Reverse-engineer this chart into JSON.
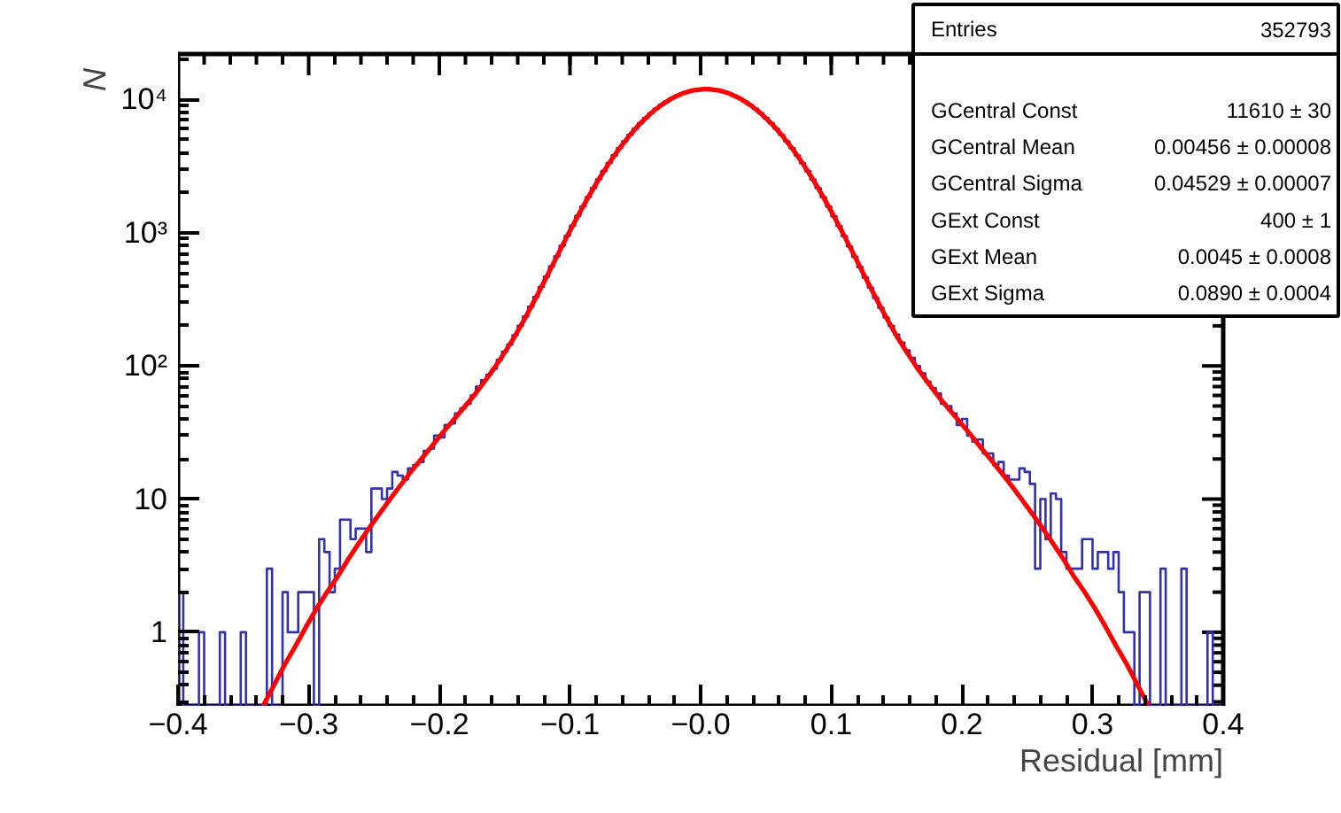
{
  "chart_data": {
    "type": "histogram",
    "xlabel": "Residual [mm]",
    "ylabel": "N",
    "log": "y",
    "xlim": [
      -0.4,
      0.4
    ],
    "ylim": [
      0.28,
      22000
    ],
    "xticks": [
      {
        "value": -0.4,
        "label": "−0.4"
      },
      {
        "value": -0.3,
        "label": "−0.3"
      },
      {
        "value": -0.2,
        "label": "−0.2"
      },
      {
        "value": -0.1,
        "label": "−0.1"
      },
      {
        "value": 0,
        "label": "−0.0"
      },
      {
        "value": 0.1,
        "label": "0.1"
      },
      {
        "value": 0.2,
        "label": "0.2"
      },
      {
        "value": 0.3,
        "label": "0.3"
      },
      {
        "value": 0.4,
        "label": "0.4"
      }
    ],
    "yticks": [
      1,
      10,
      {
        "value": 100,
        "label": "10²"
      },
      {
        "value": 1000,
        "label": "10³"
      },
      {
        "value": 10000,
        "label": "10⁴"
      }
    ],
    "annotations": [
      "Entries",
      "352793",
      "GCentral Const",
      "11610 ± 30",
      "GCentral Mean",
      "0.00456 ± 0.00008",
      "GCentral Sigma",
      "0.04529 ± 0.00007",
      "GExt Const",
      "400 ± 1",
      "GExt Mean",
      "0.0045 ± 0.0008",
      "GExt Sigma",
      "0.0890 ± 0.0004"
    ],
    "series": [
      {
        "color": "#3030b0",
        "bins": [
          -0.4,
          -0.396,
          -0.392,
          -0.388,
          -0.384,
          -0.38,
          -0.376,
          -0.372,
          -0.368,
          -0.364,
          -0.36,
          -0.356,
          -0.352,
          -0.348,
          -0.344,
          -0.34,
          -0.336,
          -0.332,
          -0.328,
          -0.324,
          -0.32,
          -0.316,
          -0.312,
          -0.308,
          -0.304,
          -0.3,
          -0.296,
          -0.292,
          -0.288,
          -0.284,
          -0.28,
          -0.276,
          -0.272,
          -0.268,
          -0.264,
          -0.26,
          -0.256,
          -0.252,
          -0.248,
          -0.244,
          -0.24,
          -0.236,
          -0.232,
          -0.228,
          -0.224,
          -0.22,
          -0.216,
          -0.212,
          -0.208,
          -0.204,
          -0.2,
          -0.196,
          -0.192,
          -0.188,
          -0.184,
          -0.18,
          -0.176,
          -0.172,
          -0.168,
          -0.164,
          -0.16,
          -0.156,
          -0.152,
          -0.148,
          -0.144,
          -0.14,
          -0.136,
          -0.132,
          -0.128,
          -0.124,
          -0.12,
          -0.116,
          -0.112,
          -0.108,
          -0.104,
          -0.1,
          -0.096,
          -0.092,
          -0.088,
          -0.084,
          -0.08,
          -0.076,
          -0.072,
          -0.068,
          -0.064,
          -0.06,
          -0.056,
          -0.052,
          -0.048,
          -0.044,
          -0.04,
          -0.036,
          -0.032,
          -0.028,
          -0.024,
          -0.02,
          -0.016,
          -0.012,
          -0.008,
          -0.004,
          0,
          0.004,
          0.008,
          0.012,
          0.016,
          0.02,
          0.024,
          0.028,
          0.032,
          0.036,
          0.04,
          0.044,
          0.048,
          0.052,
          0.056,
          0.06,
          0.064,
          0.068,
          0.072,
          0.076,
          0.08,
          0.084,
          0.088,
          0.092,
          0.096,
          0.1,
          0.104,
          0.108,
          0.112,
          0.116,
          0.12,
          0.124,
          0.128,
          0.132,
          0.136,
          0.14,
          0.144,
          0.148,
          0.152,
          0.156,
          0.16,
          0.164,
          0.168,
          0.172,
          0.176,
          0.18,
          0.184,
          0.188,
          0.192,
          0.196,
          0.2,
          0.204,
          0.208,
          0.212,
          0.216,
          0.22,
          0.224,
          0.228,
          0.232,
          0.236,
          0.24,
          0.244,
          0.248,
          0.252,
          0.256,
          0.26,
          0.264,
          0.268,
          0.272,
          0.276,
          0.28,
          0.284,
          0.288,
          0.292,
          0.296,
          0.3,
          0.304,
          0.308,
          0.312,
          0.316,
          0.32,
          0.324,
          0.328,
          0.332,
          0.336,
          0.34,
          0.344,
          0.348,
          0.352,
          0.356,
          0.36,
          0.364,
          0.368,
          0.372,
          0.376,
          0.38,
          0.384,
          0.388,
          0.392,
          0.396,
          0.4
        ],
        "values": [
          2,
          null,
          null,
          null,
          1,
          null,
          null,
          null,
          1,
          null,
          null,
          null,
          1,
          null,
          null,
          null,
          null,
          3,
          null,
          null,
          2,
          1,
          1,
          2,
          2,
          2,
          null,
          5,
          4,
          2,
          3,
          7,
          7,
          5,
          6,
          6,
          4,
          12,
          12,
          10,
          12,
          16,
          15,
          14,
          17,
          18,
          19,
          23,
          24,
          30,
          29,
          36,
          37,
          44,
          48,
          52,
          60,
          70,
          78,
          86,
          95,
          111,
          128,
          145,
          170,
          200,
          235,
          278,
          330,
          392,
          468,
          560,
          668,
          798,
          950,
          1130,
          1338,
          1580,
          1855,
          2168,
          2520,
          2910,
          3342,
          3815,
          4322,
          4866,
          5443,
          6042,
          6659,
          7284,
          7911,
          8531,
          9130,
          9700,
          10229,
          10708,
          11123,
          11465,
          11730,
          11910,
          12001,
          11998,
          11906,
          11726,
          11460,
          11118,
          10703,
          10225,
          9695,
          9125,
          8525,
          7905,
          7278,
          6653,
          6036,
          5437,
          4860,
          4316,
          3807,
          3335,
          2903,
          2512,
          2161,
          1848,
          1573,
          1331,
          1123,
          944,
          790,
          661,
          552,
          461,
          387,
          324,
          273,
          231,
          200,
          172,
          150,
          131,
          115,
          100,
          88,
          76,
          68,
          62,
          52,
          50,
          44,
          36,
          40,
          30,
          27,
          28,
          22,
          22,
          18,
          19,
          15,
          14,
          14,
          17,
          16,
          13,
          3,
          10,
          5,
          11,
          10,
          4,
          3,
          3,
          3,
          5,
          5,
          3,
          4,
          4,
          3,
          4,
          2,
          1,
          1,
          null,
          2,
          2,
          null,
          null,
          3,
          null,
          null,
          null,
          3,
          null,
          null,
          null,
          null,
          1,
          null,
          null
        ]
      },
      {
        "type": "line",
        "color": "#ff0000",
        "x": [
          -0.334,
          -0.326,
          -0.318,
          -0.31,
          -0.302,
          -0.294,
          -0.286,
          -0.278,
          -0.27,
          -0.262,
          -0.254,
          -0.246,
          -0.238,
          -0.23,
          -0.222,
          -0.214,
          -0.206,
          -0.198,
          -0.19,
          -0.182,
          -0.174,
          -0.166,
          -0.158,
          -0.15,
          -0.142,
          -0.134,
          -0.126,
          -0.118,
          -0.11,
          -0.102,
          -0.094,
          -0.086,
          -0.078,
          -0.07,
          -0.062,
          -0.054,
          -0.046,
          -0.038,
          -0.03,
          -0.022,
          -0.014,
          -0.006,
          0.002,
          0.004,
          0.006,
          0.014,
          0.022,
          0.03,
          0.038,
          0.046,
          0.054,
          0.062,
          0.07,
          0.078,
          0.086,
          0.094,
          0.102,
          0.11,
          0.118,
          0.126,
          0.134,
          0.142,
          0.15,
          0.158,
          0.166,
          0.174,
          0.182,
          0.19,
          0.198,
          0.206,
          0.214,
          0.222,
          0.23,
          0.238,
          0.246,
          0.254,
          0.262,
          0.27,
          0.278,
          0.286,
          0.294,
          0.302,
          0.31,
          0.318,
          0.326,
          0.334,
          0.342
        ],
        "values": [
          0.29,
          0.41,
          0.58,
          0.79,
          1.1,
          1.5,
          2.0,
          2.6,
          3.5,
          4.6,
          6.0,
          7.7,
          9.9,
          12.6,
          15.9,
          19.9,
          24.7,
          31,
          38.4,
          47.5,
          59,
          75,
          96,
          126,
          168,
          232,
          326,
          464,
          664,
          947,
          1334,
          1851,
          2515,
          3338,
          4319,
          5440,
          6656,
          7908,
          9128,
          10227,
          11121,
          11728,
          11999,
          12010,
          11999,
          11728,
          11121,
          10227,
          9128,
          7908,
          6656,
          5440,
          4319,
          3338,
          2515,
          1851,
          1334,
          947,
          664,
          464,
          326,
          232,
          168,
          126,
          96,
          75,
          59,
          47.5,
          38.4,
          31,
          24.7,
          19.9,
          15.9,
          12.6,
          9.9,
          7.7,
          6.0,
          4.6,
          3.5,
          2.6,
          2.0,
          1.5,
          1.1,
          0.79,
          0.58,
          0.41,
          0.29
        ]
      }
    ]
  }
}
